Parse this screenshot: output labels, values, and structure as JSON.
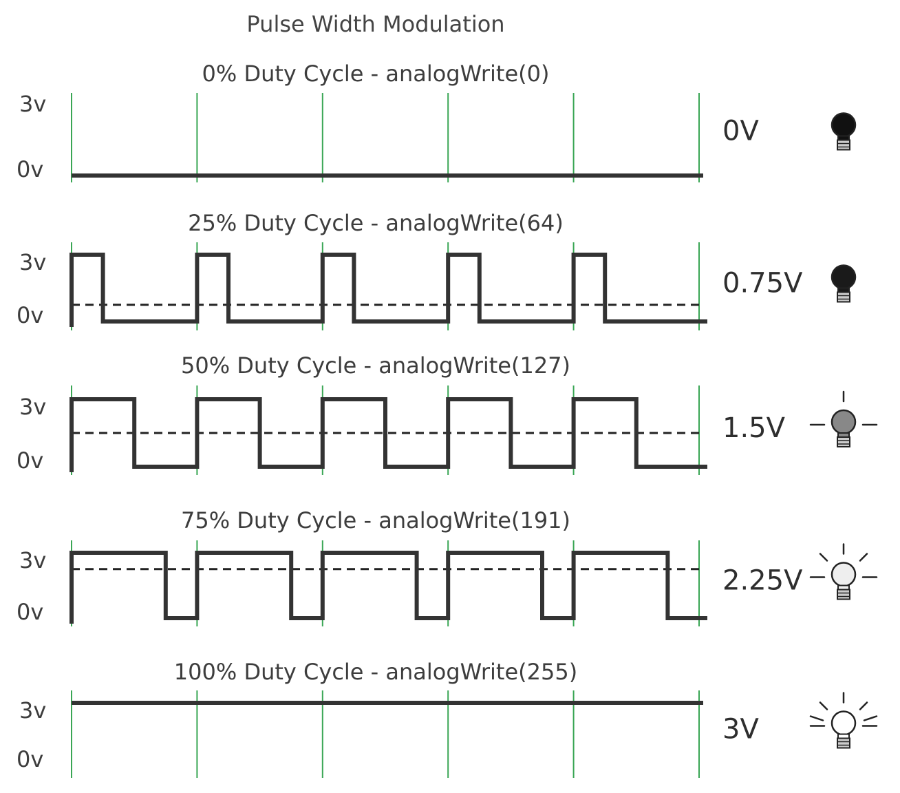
{
  "title": "Pulse Width Modulation",
  "axis_labels": {
    "high": "3v",
    "low": "0v"
  },
  "colors": {
    "signal": "#333333",
    "period_marker": "#3aa655",
    "average_line": "#222222",
    "bulb_off": "#111111",
    "bulb_mid": "#888888",
    "bulb_light": "#eeeeee"
  },
  "periods": 5,
  "panels": [
    {
      "label": "0% Duty Cycle - analogWrite(0)",
      "duty": 0,
      "voltage": "0V",
      "bulb": "bulb-off-icon",
      "rays": 0
    },
    {
      "label": "25% Duty Cycle - analogWrite(64)",
      "duty": 0.25,
      "voltage": "0.75V",
      "bulb": "bulb-dark-icon",
      "rays": 0
    },
    {
      "label": "50% Duty Cycle - analogWrite(127)",
      "duty": 0.5,
      "voltage": "1.5V",
      "bulb": "bulb-dim-icon",
      "rays": 3
    },
    {
      "label": "75% Duty Cycle - analogWrite(191)",
      "duty": 0.75,
      "voltage": "2.25V",
      "bulb": "bulb-bright-icon",
      "rays": 5
    },
    {
      "label": "100% Duty Cycle - analogWrite(255)",
      "duty": 1,
      "voltage": "3V",
      "bulb": "bulb-full-icon",
      "rays": 7
    }
  ]
}
